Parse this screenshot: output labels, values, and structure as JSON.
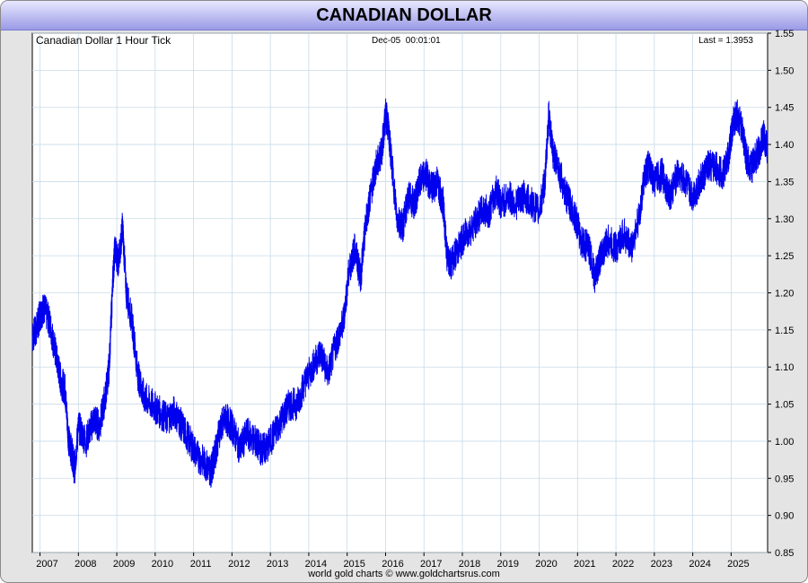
{
  "header": {
    "title": "CANADIAN DOLLAR"
  },
  "footer": {
    "credit": "world gold charts © www.goldchartsrus.com"
  },
  "colors": {
    "line": "#0000ee",
    "grid": "#c8dbe8",
    "title_bar_top": "#e8e8ff",
    "title_bar_bottom": "#9a9ae6"
  },
  "chart_data": {
    "type": "line",
    "title": "Canadian Dollar 1 Hour Tick",
    "timestamp": "Dec-05  00:01:01",
    "last_label": "Last = 1.3953",
    "xlabel": "",
    "ylabel": "",
    "ylim": [
      0.85,
      1.55
    ],
    "xlim": [
      2006.8,
      2025.95
    ],
    "y_ticks": [
      "0.85",
      "0.90",
      "0.95",
      "1.00",
      "1.05",
      "1.10",
      "1.15",
      "1.20",
      "1.25",
      "1.30",
      "1.35",
      "1.40",
      "1.45",
      "1.50",
      "1.55"
    ],
    "x_ticks": [
      "2007",
      "2008",
      "2009",
      "2010",
      "2011",
      "2012",
      "2013",
      "2014",
      "2015",
      "2016",
      "2017",
      "2018",
      "2019",
      "2020",
      "2021",
      "2022",
      "2023",
      "2024",
      "2025"
    ],
    "grid": true,
    "series": [
      {
        "name": "",
        "x": [
          2006.8,
          2006.9,
          2007.0,
          2007.1,
          2007.25,
          2007.4,
          2007.55,
          2007.65,
          2007.75,
          2007.85,
          2007.9,
          2008.0,
          2008.2,
          2008.4,
          2008.55,
          2008.7,
          2008.8,
          2008.9,
          2008.95,
          2009.05,
          2009.15,
          2009.25,
          2009.4,
          2009.55,
          2009.7,
          2009.9,
          2010.1,
          2010.3,
          2010.5,
          2010.7,
          2010.9,
          2011.1,
          2011.3,
          2011.45,
          2011.55,
          2011.7,
          2011.85,
          2012.0,
          2012.2,
          2012.4,
          2012.6,
          2012.75,
          2012.9,
          2013.1,
          2013.3,
          2013.5,
          2013.7,
          2013.9,
          2014.1,
          2014.3,
          2014.5,
          2014.7,
          2014.9,
          2015.05,
          2015.2,
          2015.35,
          2015.5,
          2015.6,
          2015.75,
          2015.9,
          2016.0,
          2016.05,
          2016.15,
          2016.3,
          2016.45,
          2016.6,
          2016.75,
          2016.9,
          2017.05,
          2017.2,
          2017.35,
          2017.5,
          2017.6,
          2017.7,
          2017.9,
          2018.1,
          2018.3,
          2018.5,
          2018.7,
          2018.9,
          2019.0,
          2019.2,
          2019.4,
          2019.6,
          2019.8,
          2020.0,
          2020.15,
          2020.25,
          2020.35,
          2020.5,
          2020.7,
          2020.9,
          2021.1,
          2021.3,
          2021.45,
          2021.6,
          2021.8,
          2022.0,
          2022.2,
          2022.4,
          2022.6,
          2022.75,
          2022.85,
          2023.0,
          2023.2,
          2023.4,
          2023.6,
          2023.8,
          2024.0,
          2024.2,
          2024.4,
          2024.6,
          2024.8,
          2024.95,
          2025.05,
          2025.15,
          2025.3,
          2025.4,
          2025.55,
          2025.7,
          2025.85,
          2025.95
        ],
        "values": [
          1.14,
          1.15,
          1.17,
          1.18,
          1.16,
          1.12,
          1.08,
          1.07,
          1.0,
          0.98,
          0.96,
          1.02,
          1.0,
          1.03,
          1.02,
          1.06,
          1.1,
          1.22,
          1.26,
          1.24,
          1.29,
          1.2,
          1.16,
          1.09,
          1.06,
          1.05,
          1.04,
          1.03,
          1.04,
          1.02,
          1.0,
          0.98,
          0.97,
          0.96,
          0.98,
          1.02,
          1.03,
          1.02,
          0.99,
          1.01,
          1.0,
          0.99,
          0.99,
          1.01,
          1.03,
          1.05,
          1.05,
          1.08,
          1.1,
          1.12,
          1.09,
          1.13,
          1.16,
          1.23,
          1.26,
          1.22,
          1.3,
          1.33,
          1.37,
          1.39,
          1.44,
          1.43,
          1.38,
          1.3,
          1.29,
          1.33,
          1.32,
          1.35,
          1.36,
          1.34,
          1.35,
          1.32,
          1.25,
          1.24,
          1.26,
          1.28,
          1.29,
          1.31,
          1.31,
          1.34,
          1.32,
          1.33,
          1.32,
          1.33,
          1.32,
          1.31,
          1.35,
          1.44,
          1.39,
          1.37,
          1.33,
          1.31,
          1.27,
          1.26,
          1.22,
          1.25,
          1.27,
          1.26,
          1.28,
          1.26,
          1.3,
          1.36,
          1.37,
          1.35,
          1.36,
          1.33,
          1.36,
          1.35,
          1.33,
          1.35,
          1.37,
          1.37,
          1.36,
          1.39,
          1.43,
          1.44,
          1.42,
          1.38,
          1.37,
          1.39,
          1.41,
          1.395
        ]
      }
    ]
  }
}
